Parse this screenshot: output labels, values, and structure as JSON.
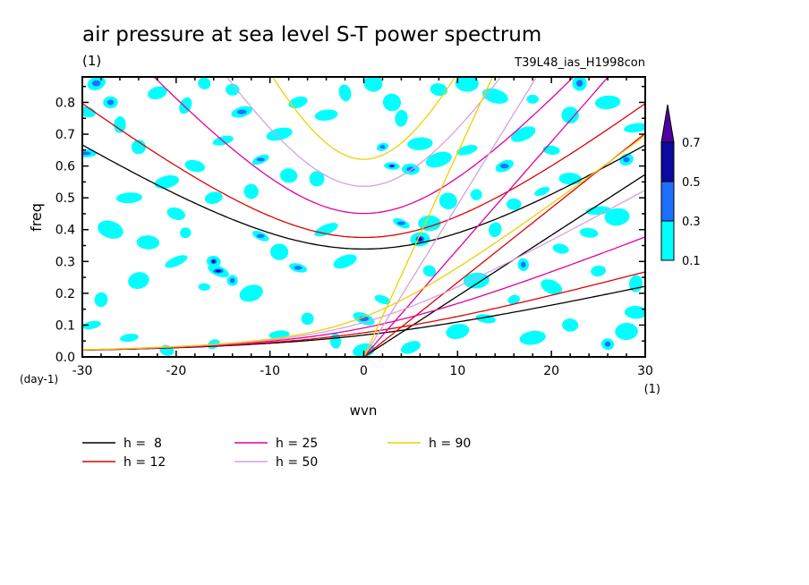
{
  "chart_data": {
    "type": "heatmap",
    "title": "air pressure at sea level S-T power spectrum",
    "units_label": "(1)",
    "experiment": "T39L48_ias_H1998con",
    "xlabel": "wvn",
    "ylabel": "freq",
    "x_unit": "(1)",
    "y_unit": "(day-1)",
    "xlim": [
      -30,
      30
    ],
    "ylim": [
      0.0,
      0.88
    ],
    "x_ticks": [
      "-30",
      "-20",
      "-10",
      "0",
      "10",
      "20",
      "30"
    ],
    "x_tick_values": [
      -30,
      -20,
      -10,
      0,
      10,
      20,
      30
    ],
    "y_ticks": [
      "0.0",
      "0.1",
      "0.2",
      "0.3",
      "0.4",
      "0.5",
      "0.6",
      "0.7",
      "0.8"
    ],
    "y_tick_values": [
      0.0,
      0.1,
      0.2,
      0.3,
      0.4,
      0.5,
      0.6,
      0.7,
      0.8
    ],
    "colorbar": {
      "levels": [
        "0.1",
        "0.3",
        "0.5",
        "0.7"
      ],
      "colors": [
        "#00ffff",
        "#1e6eff",
        "#0a0aa0",
        "#5000a0"
      ],
      "extend": "max"
    },
    "dispersion_curves": [
      {
        "label": "h =  8",
        "h": 8,
        "color": "#000000"
      },
      {
        "label": "h = 12",
        "h": 12,
        "color": "#e00000"
      },
      {
        "label": "h = 25",
        "h": 25,
        "color": "#e000a0"
      },
      {
        "label": "h = 50",
        "h": 50,
        "color": "#d8a0e0"
      },
      {
        "label": "h = 90",
        "h": 90,
        "color": "#f0d000"
      }
    ],
    "blobs": [
      [
        -28.5,
        0.86,
        2
      ],
      [
        -27,
        0.8,
        2
      ],
      [
        -26,
        0.73,
        1
      ],
      [
        -29.5,
        0.77,
        1
      ],
      [
        -29.6,
        0.64,
        2
      ],
      [
        -24,
        0.66,
        1
      ],
      [
        -22,
        0.83,
        1
      ],
      [
        -19,
        0.79,
        1
      ],
      [
        -17,
        0.86,
        1
      ],
      [
        -14,
        0.84,
        1
      ],
      [
        -13,
        0.77,
        2
      ],
      [
        -9,
        0.7,
        1
      ],
      [
        -7,
        0.8,
        1
      ],
      [
        -4,
        0.76,
        1
      ],
      [
        -2,
        0.83,
        1
      ],
      [
        -21,
        0.55,
        1
      ],
      [
        -18,
        0.6,
        1
      ],
      [
        -15,
        0.68,
        1
      ],
      [
        -11,
        0.62,
        2
      ],
      [
        -8,
        0.57,
        1
      ],
      [
        -25,
        0.5,
        1
      ],
      [
        -20,
        0.45,
        1
      ],
      [
        -16,
        0.5,
        1
      ],
      [
        -12,
        0.52,
        1
      ],
      [
        -5,
        0.56,
        1
      ],
      [
        -27,
        0.4,
        1
      ],
      [
        -23,
        0.36,
        1
      ],
      [
        -19,
        0.39,
        1
      ],
      [
        -16,
        0.3,
        3
      ],
      [
        -15.5,
        0.27,
        3
      ],
      [
        -14,
        0.24,
        2
      ],
      [
        -11,
        0.38,
        2
      ],
      [
        -9,
        0.33,
        1
      ],
      [
        -7,
        0.28,
        2
      ],
      [
        -4,
        0.4,
        1
      ],
      [
        -28,
        0.18,
        1
      ],
      [
        -24,
        0.24,
        1
      ],
      [
        -20,
        0.3,
        1
      ],
      [
        -17,
        0.22,
        1
      ],
      [
        -12,
        0.2,
        1
      ],
      [
        -29,
        0.1,
        1
      ],
      [
        -25,
        0.06,
        1
      ],
      [
        -21,
        0.02,
        1
      ],
      [
        -16,
        0.04,
        1
      ],
      [
        -9,
        0.07,
        1
      ],
      [
        -6,
        0.12,
        1
      ],
      [
        -3,
        0.05,
        1
      ],
      [
        0,
        0.12,
        2
      ],
      [
        0,
        0.02,
        1
      ],
      [
        2,
        0.18,
        1
      ],
      [
        2,
        0.66,
        2
      ],
      [
        3,
        0.6,
        3
      ],
      [
        5,
        0.59,
        2
      ],
      [
        6,
        0.67,
        1
      ],
      [
        4,
        0.75,
        1
      ],
      [
        1,
        0.86,
        1
      ],
      [
        3,
        0.8,
        1
      ],
      [
        8,
        0.84,
        1
      ],
      [
        11,
        0.86,
        1
      ],
      [
        14,
        0.82,
        1
      ],
      [
        4,
        0.42,
        2
      ],
      [
        6,
        0.37,
        3
      ],
      [
        7,
        0.42,
        1
      ],
      [
        9,
        0.49,
        1
      ],
      [
        12,
        0.51,
        1
      ],
      [
        8,
        0.62,
        1
      ],
      [
        11,
        0.65,
        1
      ],
      [
        15,
        0.6,
        2
      ],
      [
        17,
        0.7,
        1
      ],
      [
        20,
        0.65,
        1
      ],
      [
        23,
        0.86,
        2
      ],
      [
        26,
        0.8,
        1
      ],
      [
        29,
        0.72,
        1
      ],
      [
        22,
        0.76,
        1
      ],
      [
        18,
        0.81,
        1
      ],
      [
        16,
        0.48,
        1
      ],
      [
        19,
        0.52,
        1
      ],
      [
        22,
        0.56,
        1
      ],
      [
        25,
        0.46,
        1
      ],
      [
        28,
        0.62,
        2
      ],
      [
        14,
        0.4,
        1
      ],
      [
        17,
        0.29,
        2
      ],
      [
        21,
        0.34,
        1
      ],
      [
        24,
        0.39,
        1
      ],
      [
        27,
        0.44,
        1
      ],
      [
        12,
        0.24,
        1
      ],
      [
        16,
        0.18,
        1
      ],
      [
        20,
        0.22,
        1
      ],
      [
        25,
        0.27,
        1
      ],
      [
        29,
        0.23,
        1
      ],
      [
        10,
        0.08,
        1
      ],
      [
        13,
        0.12,
        1
      ],
      [
        18,
        0.06,
        1
      ],
      [
        22,
        0.1,
        1
      ],
      [
        26,
        0.04,
        2
      ],
      [
        29,
        0.14,
        1
      ],
      [
        5,
        0.03,
        1
      ],
      [
        7,
        0.27,
        1
      ],
      [
        28,
        0.08,
        1
      ],
      [
        -2,
        0.3,
        1
      ]
    ]
  },
  "legend": {
    "items": [
      {
        "label": "h =  8",
        "color": "#000000"
      },
      {
        "label": "h = 12",
        "color": "#e00000"
      },
      {
        "label": "h = 25",
        "color": "#e000a0"
      },
      {
        "label": "h = 50",
        "color": "#d8a0e0"
      },
      {
        "label": "h = 90",
        "color": "#f0d000"
      }
    ]
  }
}
